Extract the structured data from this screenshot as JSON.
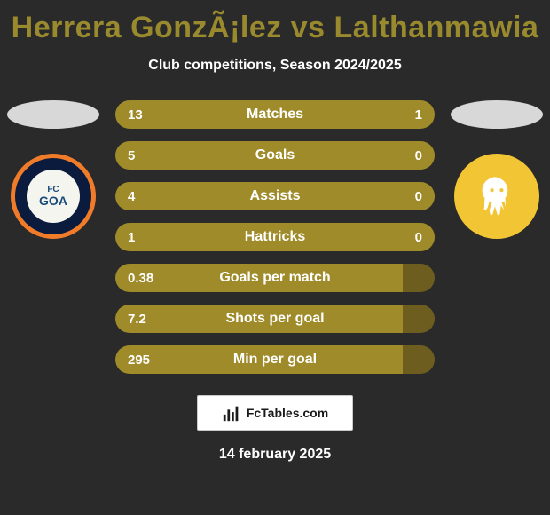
{
  "title": {
    "player1": "Herrera GonzÃ¡lez",
    "vs": "vs",
    "player2": "Lalthanmawia",
    "color": "#9a8a2e"
  },
  "subtitle": "Club competitions, Season 2024/2025",
  "clubs": {
    "left": {
      "name": "FC Goa",
      "fc": "FC",
      "goa": "GOA"
    },
    "right": {
      "name": "Kerala Blasters"
    }
  },
  "colors": {
    "bar_primary": "#a08b2a",
    "bar_secondary": "#6d5e1f",
    "text": "#ffffff"
  },
  "stats": [
    {
      "label": "Matches",
      "left_val": "13",
      "right_val": "1",
      "left_pct": 93,
      "right_pct": 7
    },
    {
      "label": "Goals",
      "left_val": "5",
      "right_val": "0",
      "left_pct": 100,
      "right_pct": 0
    },
    {
      "label": "Assists",
      "left_val": "4",
      "right_val": "0",
      "left_pct": 100,
      "right_pct": 0
    },
    {
      "label": "Hattricks",
      "left_val": "1",
      "right_val": "0",
      "left_pct": 100,
      "right_pct": 0
    },
    {
      "label": "Goals per match",
      "left_val": "0.38",
      "right_val": "",
      "left_pct": 90,
      "right_pct": 0
    },
    {
      "label": "Shots per goal",
      "left_val": "7.2",
      "right_val": "",
      "left_pct": 90,
      "right_pct": 0
    },
    {
      "label": "Min per goal",
      "left_val": "295",
      "right_val": "",
      "left_pct": 90,
      "right_pct": 0
    }
  ],
  "brand": "FcTables.com",
  "date": "14 february 2025"
}
